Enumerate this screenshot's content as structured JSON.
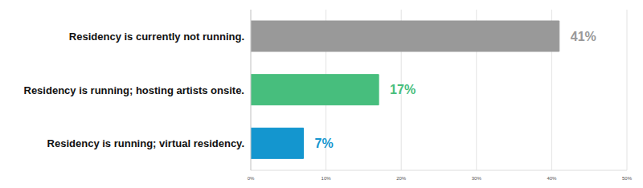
{
  "chart_data": {
    "type": "bar",
    "orientation": "horizontal",
    "categories": [
      "Residency is currently not running.",
      "Residency is running; hosting artists onsite.",
      "Residency is running; virtual residency."
    ],
    "values": [
      41,
      17,
      7
    ],
    "value_labels": [
      "41%",
      "17%",
      "7%"
    ],
    "colors": [
      "#999999",
      "#47be7d",
      "#1496cf"
    ],
    "xlim": [
      0,
      50
    ],
    "xticks": [
      {
        "value": 0,
        "label": "0%"
      },
      {
        "value": 10,
        "label": "10%"
      },
      {
        "value": 20,
        "label": "20%"
      },
      {
        "value": 30,
        "label": "30%"
      },
      {
        "value": 40,
        "label": "40%"
      },
      {
        "value": 50,
        "label": "50%"
      }
    ],
    "grid": true,
    "data_labels": true
  }
}
